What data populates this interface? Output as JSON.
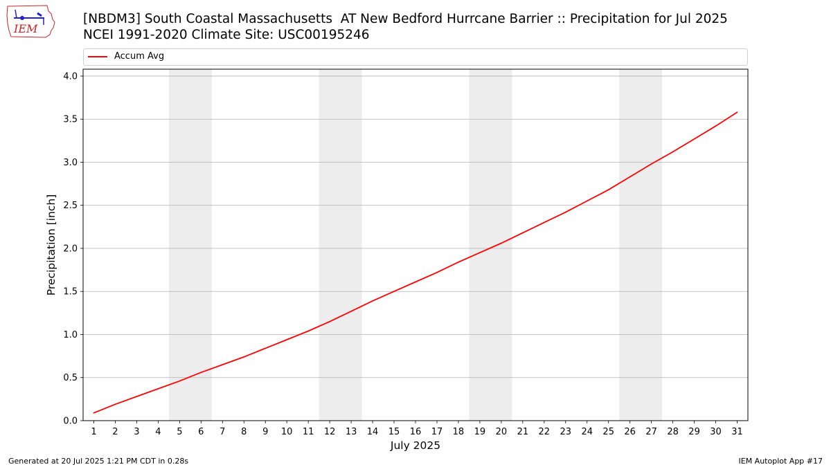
{
  "header": {
    "title_line1": "[NBDM3] South Coastal Massachusetts  AT New Bedford Hurrcane Barrier :: Precipitation for Jul 2025",
    "title_line2": "NCEI 1991-2020 Climate Site: USC00195246",
    "logo_text": "IEM"
  },
  "footer": {
    "left": "Generated at 20 Jul 2025 1:21 PM CDT in 0.28s",
    "right": "IEM Autoplot App #17"
  },
  "colors": {
    "series": "#ff0000",
    "weekend_band": "#ededed",
    "grid": "#b0b0b0",
    "logo": "#cc2222"
  },
  "chart_data": {
    "type": "line",
    "xlabel": "July 2025",
    "ylabel": "Precipitation [inch]",
    "xlim": [
      0.5,
      31.5
    ],
    "ylim": [
      0,
      4.08
    ],
    "x_ticks": [
      1,
      2,
      3,
      4,
      5,
      6,
      7,
      8,
      9,
      10,
      11,
      12,
      13,
      14,
      15,
      16,
      17,
      18,
      19,
      20,
      21,
      22,
      23,
      24,
      25,
      26,
      27,
      28,
      29,
      30,
      31
    ],
    "y_ticks": [
      0.0,
      0.5,
      1.0,
      1.5,
      2.0,
      2.5,
      3.0,
      3.5,
      4.0
    ],
    "y_tick_labels": [
      "0.0",
      "0.5",
      "1.0",
      "1.5",
      "2.0",
      "2.5",
      "3.0",
      "3.5",
      "4.0"
    ],
    "grid": "horizontal",
    "legend_position": "top",
    "shaded_days": [
      [
        5,
        6
      ],
      [
        12,
        13
      ],
      [
        19,
        20
      ],
      [
        26,
        27
      ]
    ],
    "series": [
      {
        "name": "Accum Avg",
        "color": "#ff0000",
        "x": [
          1,
          2,
          3,
          4,
          5,
          6,
          7,
          8,
          9,
          10,
          11,
          12,
          13,
          14,
          15,
          16,
          17,
          18,
          19,
          20,
          21,
          22,
          23,
          24,
          25,
          26,
          27,
          28,
          29,
          30,
          31
        ],
        "values": [
          0.09,
          0.19,
          0.28,
          0.37,
          0.46,
          0.56,
          0.65,
          0.74,
          0.84,
          0.94,
          1.04,
          1.15,
          1.27,
          1.39,
          1.5,
          1.61,
          1.72,
          1.84,
          1.95,
          2.06,
          2.18,
          2.3,
          2.42,
          2.55,
          2.68,
          2.83,
          2.98,
          3.12,
          3.27,
          3.42,
          3.58
        ]
      }
    ]
  }
}
